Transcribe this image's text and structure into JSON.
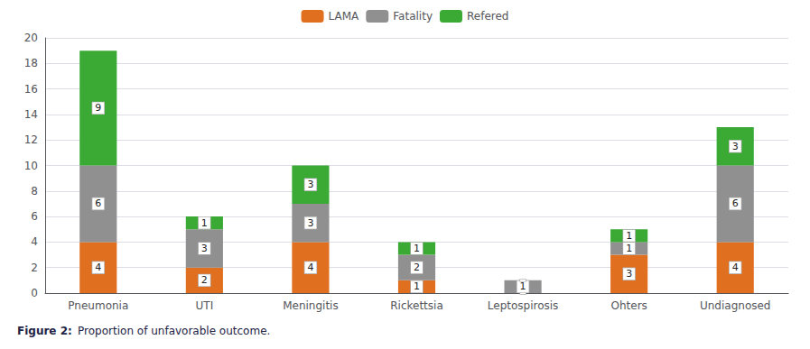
{
  "chart_data": {
    "type": "bar",
    "stacked": true,
    "data_labels": true,
    "title": "Figure 2:",
    "subtitle": "Proportion of unfavorable outcome.",
    "categories": [
      "Pneumonia",
      "UTI",
      "Meningitis",
      "Rickettsia",
      "Leptospirosis",
      "Ohters",
      "Undiagnosed"
    ],
    "series": [
      {
        "name": "LAMA",
        "color": "#e07020",
        "values": [
          4,
          2,
          4,
          1,
          0,
          3,
          4
        ]
      },
      {
        "name": "Fatality",
        "color": "#909090",
        "values": [
          6,
          3,
          3,
          2,
          1,
          1,
          6
        ]
      },
      {
        "name": "Refered",
        "color": "#3aaa35",
        "values": [
          9,
          1,
          3,
          1,
          0,
          1,
          3
        ]
      }
    ],
    "ylim": [
      0,
      20
    ],
    "yticks": [
      0,
      2,
      4,
      6,
      8,
      10,
      12,
      14,
      16,
      18,
      20
    ],
    "grid": true,
    "legend": "top"
  }
}
